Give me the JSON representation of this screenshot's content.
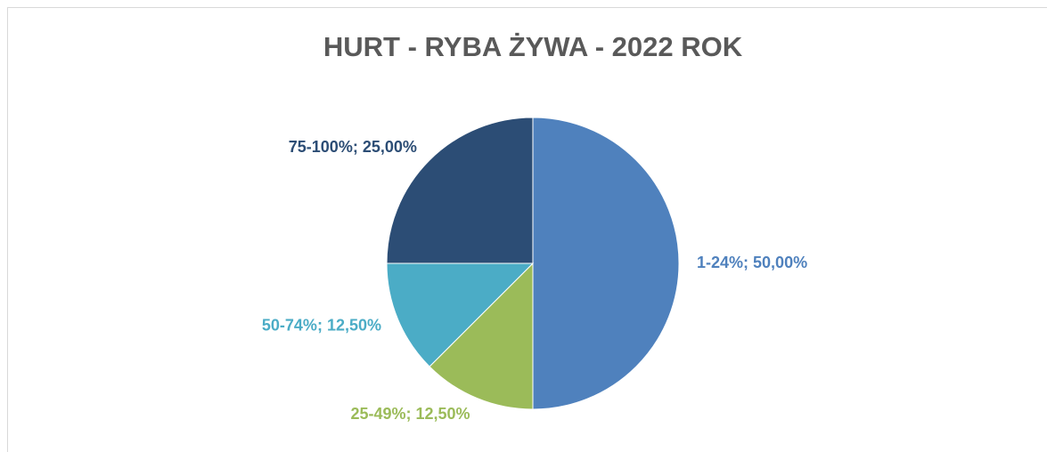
{
  "chart_data": {
    "type": "pie",
    "title": "HURT - RYBA ŻYWA - 2022 ROK",
    "categories": [
      "1-24%",
      "25-49%",
      "50-74%",
      "75-100%"
    ],
    "values": [
      50,
      12.5,
      12.5,
      25
    ],
    "value_labels": [
      "50,00%",
      "12,50%",
      "12,50%",
      "25,00%"
    ],
    "label_separator": "; ",
    "colors": [
      "#4f81bd",
      "#9bbb59",
      "#4bacc6",
      "#2c4d75"
    ]
  }
}
